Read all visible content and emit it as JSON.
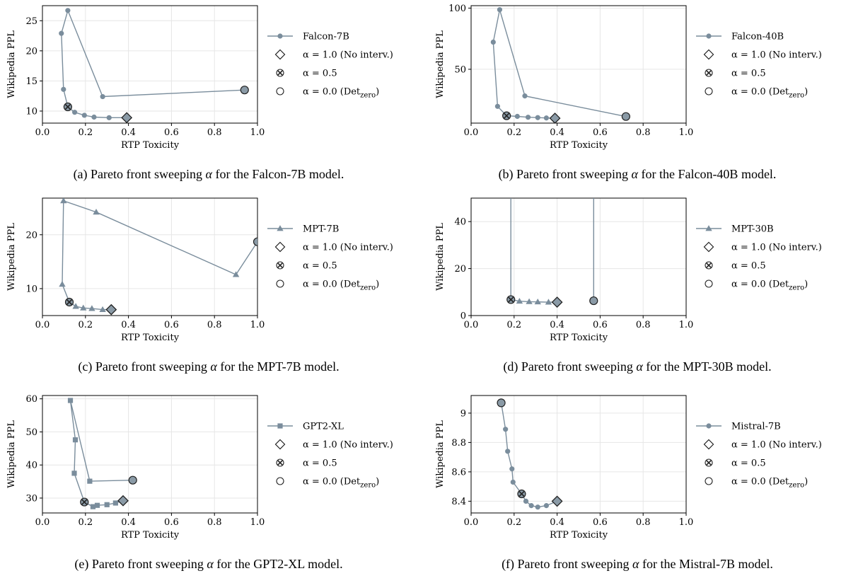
{
  "common": {
    "xlabel": "RTP Toxicity",
    "ylabel": "Wikipedia PPL",
    "xticks": [
      "0.0",
      "0.2",
      "0.4",
      "0.6",
      "0.8",
      "1.0"
    ],
    "legend_alpha1": "α = 1.0 (No interv.)",
    "legend_alpha05": "α = 0.5",
    "legend_alpha0_prefix": "α = 0.0 (Det",
    "legend_alpha0_sub": "zero",
    "legend_alpha0_suffix": ")",
    "caption_prefix": "Pareto front sweeping",
    "caption_symbol": "α",
    "caption_mid": "for the",
    "caption_suffix": "model.",
    "line_color": "#7a8d9c",
    "marker_fill": "#8a9aa6"
  },
  "chart_data": [
    {
      "type": "line",
      "panel_label": "(a)",
      "model": "Falcon-7B",
      "marker": "circle",
      "xlabel": "RTP Toxicity",
      "ylabel": "Wikipedia PPL",
      "xlim": [
        0.0,
        1.0
      ],
      "ylim": [
        8,
        27.5
      ],
      "yticks": [
        10,
        15,
        20,
        25
      ],
      "series": [
        {
          "name": "Falcon-7B",
          "x": [
            0.392,
            0.31,
            0.24,
            0.195,
            0.15,
            0.118,
            0.098,
            0.088,
            0.118,
            0.28,
            0.94
          ],
          "y": [
            8.9,
            8.9,
            9.0,
            9.3,
            9.8,
            10.7,
            13.6,
            22.9,
            26.7,
            12.4,
            13.5
          ]
        }
      ],
      "alpha_1": [
        0.392,
        8.9
      ],
      "alpha_05": [
        0.118,
        10.7
      ],
      "alpha_0": [
        0.94,
        13.5
      ]
    },
    {
      "type": "line",
      "panel_label": "(b)",
      "model": "Falcon-40B",
      "marker": "circle",
      "xlabel": "RTP Toxicity",
      "ylabel": "Wikipedia PPL",
      "xlim": [
        0.0,
        1.0
      ],
      "ylim": [
        6,
        102
      ],
      "yticks": [
        50,
        100
      ],
      "series": [
        {
          "name": "Falcon-40B",
          "x": [
            0.39,
            0.35,
            0.31,
            0.265,
            0.215,
            0.165,
            0.123,
            0.103,
            0.133,
            0.25,
            0.72
          ],
          "y": [
            10.0,
            10.2,
            10.5,
            10.8,
            11.5,
            12.0,
            19.7,
            72.2,
            98.7,
            28.2,
            11.4
          ]
        }
      ],
      "alpha_1": [
        0.39,
        10.0
      ],
      "alpha_05": [
        0.165,
        12.0
      ],
      "alpha_0": [
        0.72,
        11.4
      ]
    },
    {
      "type": "line",
      "panel_label": "(c)",
      "model": "MPT-7B",
      "marker": "triangle",
      "xlabel": "RTP Toxicity",
      "ylabel": "Wikipedia PPL",
      "xlim": [
        0.0,
        1.0
      ],
      "ylim": [
        5,
        26.8
      ],
      "yticks": [
        10,
        20
      ],
      "series": [
        {
          "name": "MPT-7B",
          "x": [
            0.32,
            0.28,
            0.23,
            0.19,
            0.155,
            0.125,
            0.092,
            0.098,
            0.25,
            0.9,
            1.0
          ],
          "y": [
            6.1,
            6.1,
            6.3,
            6.4,
            6.7,
            7.5,
            10.8,
            26.3,
            24.2,
            12.6,
            18.7
          ]
        }
      ],
      "alpha_1": [
        0.32,
        6.1
      ],
      "alpha_05": [
        0.125,
        7.5
      ],
      "alpha_0": [
        1.0,
        18.7
      ]
    },
    {
      "type": "line",
      "panel_label": "(d)",
      "model": "MPT-30B",
      "marker": "triangle",
      "xlabel": "RTP Toxicity",
      "ylabel": "Wikipedia PPL",
      "xlim": [
        0.0,
        1.0
      ],
      "ylim": [
        0,
        50
      ],
      "yticks": [
        0,
        20,
        40
      ],
      "series": [
        {
          "name": "MPT-30B",
          "x": [
            0.4,
            0.36,
            0.31,
            0.27,
            0.225,
            0.185,
            0.185,
            0.57,
            0.57
          ],
          "y": [
            5.7,
            5.7,
            5.8,
            5.9,
            6.1,
            6.8,
            60.0,
            60.0,
            6.3
          ]
        }
      ],
      "alpha_1": [
        0.4,
        5.7
      ],
      "alpha_05": [
        0.185,
        6.8
      ],
      "alpha_0": [
        0.57,
        6.3
      ]
    },
    {
      "type": "line",
      "panel_label": "(e)",
      "model": "GPT2-XL",
      "marker": "square",
      "xlabel": "RTP Toxicity",
      "ylabel": "Wikipedia PPL",
      "xlim": [
        0.0,
        1.0
      ],
      "ylim": [
        25.5,
        61
      ],
      "yticks": [
        30,
        40,
        50,
        60
      ],
      "series": [
        {
          "name": "GPT2-XL",
          "x": [
            0.375,
            0.34,
            0.3,
            0.255,
            0.235,
            0.195,
            0.148,
            0.153,
            0.13,
            0.22,
            0.42
          ],
          "y": [
            29.2,
            28.5,
            28.0,
            27.8,
            27.4,
            28.8,
            37.5,
            47.6,
            59.5,
            35.1,
            35.4
          ]
        }
      ],
      "alpha_1": [
        0.375,
        29.2
      ],
      "alpha_05": [
        0.195,
        28.8
      ],
      "alpha_0": [
        0.42,
        35.4
      ]
    },
    {
      "type": "line",
      "panel_label": "(f)",
      "model": "Mistral-7B",
      "marker": "circle",
      "xlabel": "RTP Toxicity",
      "ylabel": "Wikipedia PPL",
      "xlim": [
        0.0,
        1.0
      ],
      "ylim": [
        8.32,
        9.12
      ],
      "yticks": [
        8.4,
        8.6,
        8.8,
        9.0
      ],
      "series": [
        {
          "name": "Mistral-7B",
          "x": [
            0.4,
            0.35,
            0.31,
            0.28,
            0.255,
            0.235,
            0.195,
            0.19,
            0.17,
            0.16,
            0.14
          ],
          "y": [
            8.4,
            8.37,
            8.36,
            8.37,
            8.4,
            8.45,
            8.53,
            8.62,
            8.74,
            8.89,
            9.07
          ]
        }
      ],
      "alpha_1": [
        0.4,
        8.4
      ],
      "alpha_05": [
        0.235,
        8.45
      ],
      "alpha_0": [
        0.14,
        9.07
      ]
    }
  ]
}
